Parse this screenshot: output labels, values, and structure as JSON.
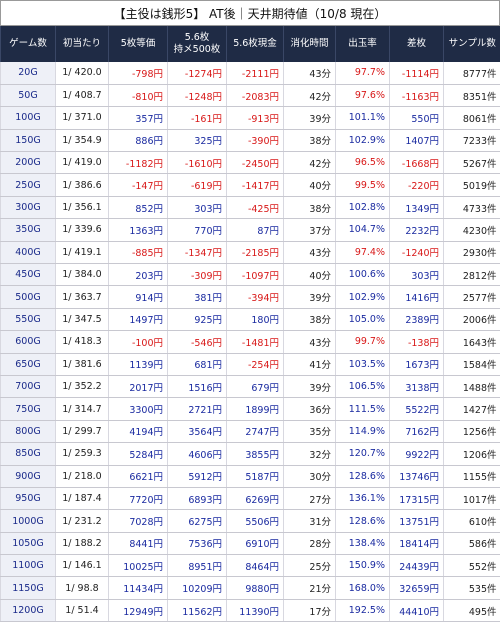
{
  "title": "【主役は銭形5】 AT後｜天井期待値（10/8 現在）",
  "table": {
    "columns": [
      "ゲーム数",
      "初当たり",
      "5枚等価",
      "5.6枚\n持メ500枚",
      "5.6枚現金",
      "消化時間",
      "出玉率",
      "差枚",
      "サンプル数"
    ],
    "rows": [
      [
        "20G",
        "1/ 420.0",
        "-798円",
        "-1274円",
        "-2111円",
        "43分",
        "97.7%",
        "-1114円",
        "8777件"
      ],
      [
        "50G",
        "1/ 408.7",
        "-810円",
        "-1248円",
        "-2083円",
        "42分",
        "97.6%",
        "-1163円",
        "8351件"
      ],
      [
        "100G",
        "1/ 371.0",
        "357円",
        "-161円",
        "-913円",
        "39分",
        "101.1%",
        "550円",
        "8061件"
      ],
      [
        "150G",
        "1/ 354.9",
        "886円",
        "325円",
        "-390円",
        "38分",
        "102.9%",
        "1407円",
        "7233件"
      ],
      [
        "200G",
        "1/ 419.0",
        "-1182円",
        "-1610円",
        "-2450円",
        "42分",
        "96.5%",
        "-1668円",
        "5267件"
      ],
      [
        "250G",
        "1/ 386.6",
        "-147円",
        "-619円",
        "-1417円",
        "40分",
        "99.5%",
        "-220円",
        "5019件"
      ],
      [
        "300G",
        "1/ 356.1",
        "852円",
        "303円",
        "-425円",
        "38分",
        "102.8%",
        "1349円",
        "4733件"
      ],
      [
        "350G",
        "1/ 339.6",
        "1363円",
        "770円",
        "87円",
        "37分",
        "104.7%",
        "2232円",
        "4230件"
      ],
      [
        "400G",
        "1/ 419.1",
        "-885円",
        "-1347円",
        "-2185円",
        "43分",
        "97.4%",
        "-1240円",
        "2930件"
      ],
      [
        "450G",
        "1/ 384.0",
        "203円",
        "-309円",
        "-1097円",
        "40分",
        "100.6%",
        "303円",
        "2812件"
      ],
      [
        "500G",
        "1/ 363.7",
        "914円",
        "381円",
        "-394円",
        "39分",
        "102.9%",
        "1416円",
        "2577件"
      ],
      [
        "550G",
        "1/ 347.5",
        "1497円",
        "925円",
        "180円",
        "38分",
        "105.0%",
        "2389円",
        "2006件"
      ],
      [
        "600G",
        "1/ 418.3",
        "-100円",
        "-546円",
        "-1481円",
        "43分",
        "99.7%",
        "-138円",
        "1643件"
      ],
      [
        "650G",
        "1/ 381.6",
        "1139円",
        "681円",
        "-254円",
        "41分",
        "103.5%",
        "1673円",
        "1584件"
      ],
      [
        "700G",
        "1/ 352.2",
        "2017円",
        "1516円",
        "679円",
        "39分",
        "106.5%",
        "3138円",
        "1488件"
      ],
      [
        "750G",
        "1/ 314.7",
        "3300円",
        "2721円",
        "1899円",
        "36分",
        "111.5%",
        "5522円",
        "1427件"
      ],
      [
        "800G",
        "1/ 299.7",
        "4194円",
        "3564円",
        "2747円",
        "35分",
        "114.9%",
        "7162円",
        "1256件"
      ],
      [
        "850G",
        "1/ 259.3",
        "5284円",
        "4606円",
        "3855円",
        "32分",
        "120.7%",
        "9922円",
        "1206件"
      ],
      [
        "900G",
        "1/ 218.0",
        "6621円",
        "5912円",
        "5187円",
        "30分",
        "128.6%",
        "13746円",
        "1155件"
      ],
      [
        "950G",
        "1/ 187.4",
        "7720円",
        "6893円",
        "6269円",
        "27分",
        "136.1%",
        "17315円",
        "1017件"
      ],
      [
        "1000G",
        "1/ 231.2",
        "7028円",
        "6275円",
        "5506円",
        "31分",
        "128.6%",
        "13751円",
        "610件"
      ],
      [
        "1050G",
        "1/ 188.2",
        "8441円",
        "7536円",
        "6910円",
        "28分",
        "138.4%",
        "18414円",
        "586件"
      ],
      [
        "1100G",
        "1/ 146.1",
        "10025円",
        "8951円",
        "8464円",
        "25分",
        "150.9%",
        "24439円",
        "552件"
      ],
      [
        "1150G",
        "1/ 98.8",
        "11434円",
        "10209円",
        "9880円",
        "21分",
        "168.0%",
        "32659円",
        "535件"
      ],
      [
        "1200G",
        "1/ 51.4",
        "12949円",
        "11562円",
        "11390円",
        "17分",
        "192.5%",
        "44410円",
        "495件"
      ]
    ]
  }
}
